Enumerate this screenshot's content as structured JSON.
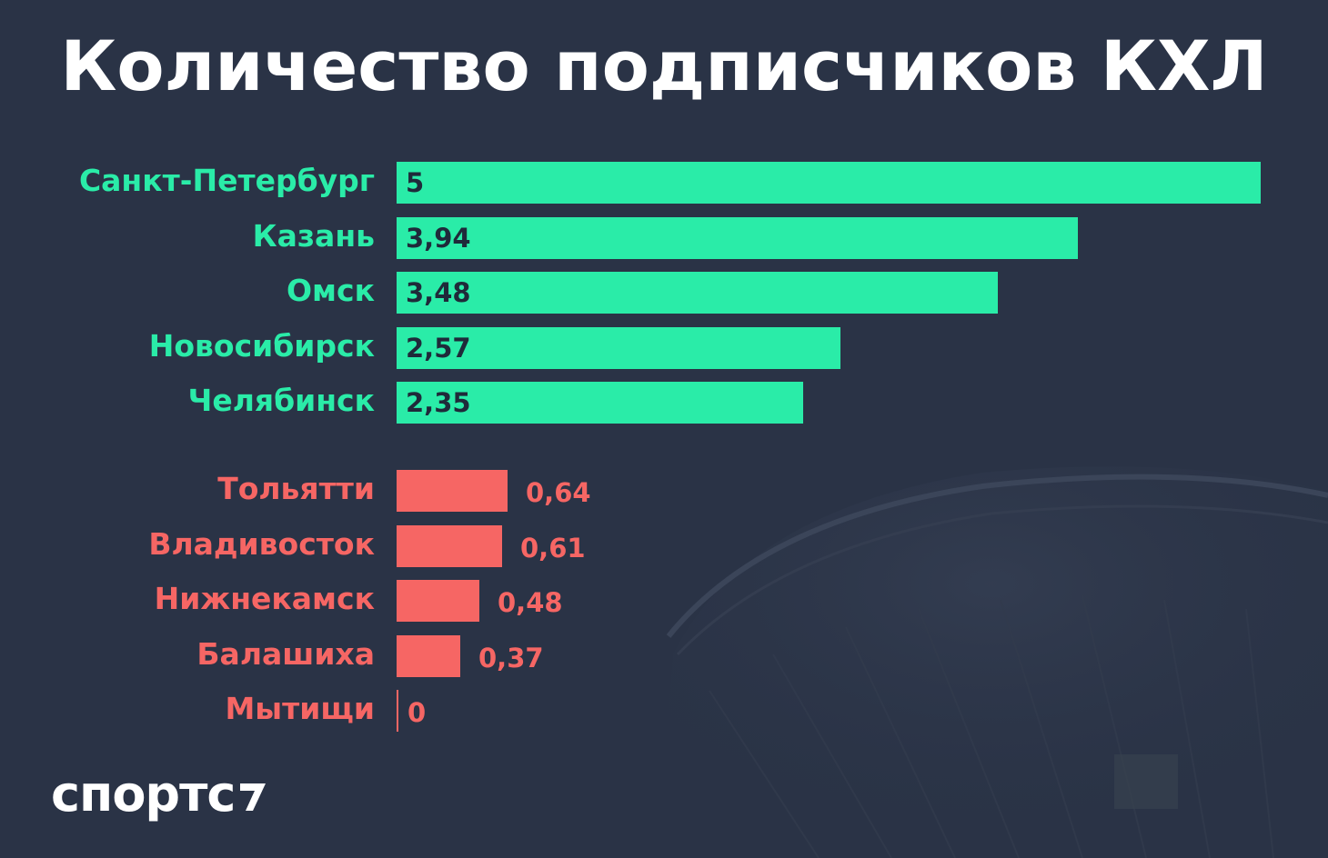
{
  "title": "Количество подписчиков КХЛ",
  "brand": {
    "name": "спортс"
  },
  "colors": {
    "background": "#2a3346",
    "top_bars": "#2aeca8",
    "bottom_bars": "#f66664",
    "top_value_text": "#1f2a3a"
  },
  "chart_data": {
    "type": "bar",
    "orientation": "horizontal",
    "title": "Количество подписчиков КХЛ",
    "xlabel": "",
    "ylabel": "",
    "xlim": [
      0,
      5
    ],
    "grid": false,
    "groups": [
      {
        "categories": [
          "Санкт-Петербург",
          "Казань",
          "Омск",
          "Новосибирск",
          "Челябинск"
        ],
        "values": [
          5,
          3.94,
          3.48,
          2.57,
          2.35
        ],
        "labels": [
          "5",
          "3,94",
          "3,48",
          "2,57",
          "2,35"
        ],
        "color": "#2aeca8"
      },
      {
        "categories": [
          "Тольятти",
          "Владивосток",
          "Нижнекамск",
          "Балашиха",
          "Мытищи"
        ],
        "values": [
          0.64,
          0.61,
          0.48,
          0.37,
          0
        ],
        "labels": [
          "0,64",
          "0,61",
          "0,48",
          "0,37",
          "0"
        ],
        "color": "#f66664"
      }
    ]
  }
}
